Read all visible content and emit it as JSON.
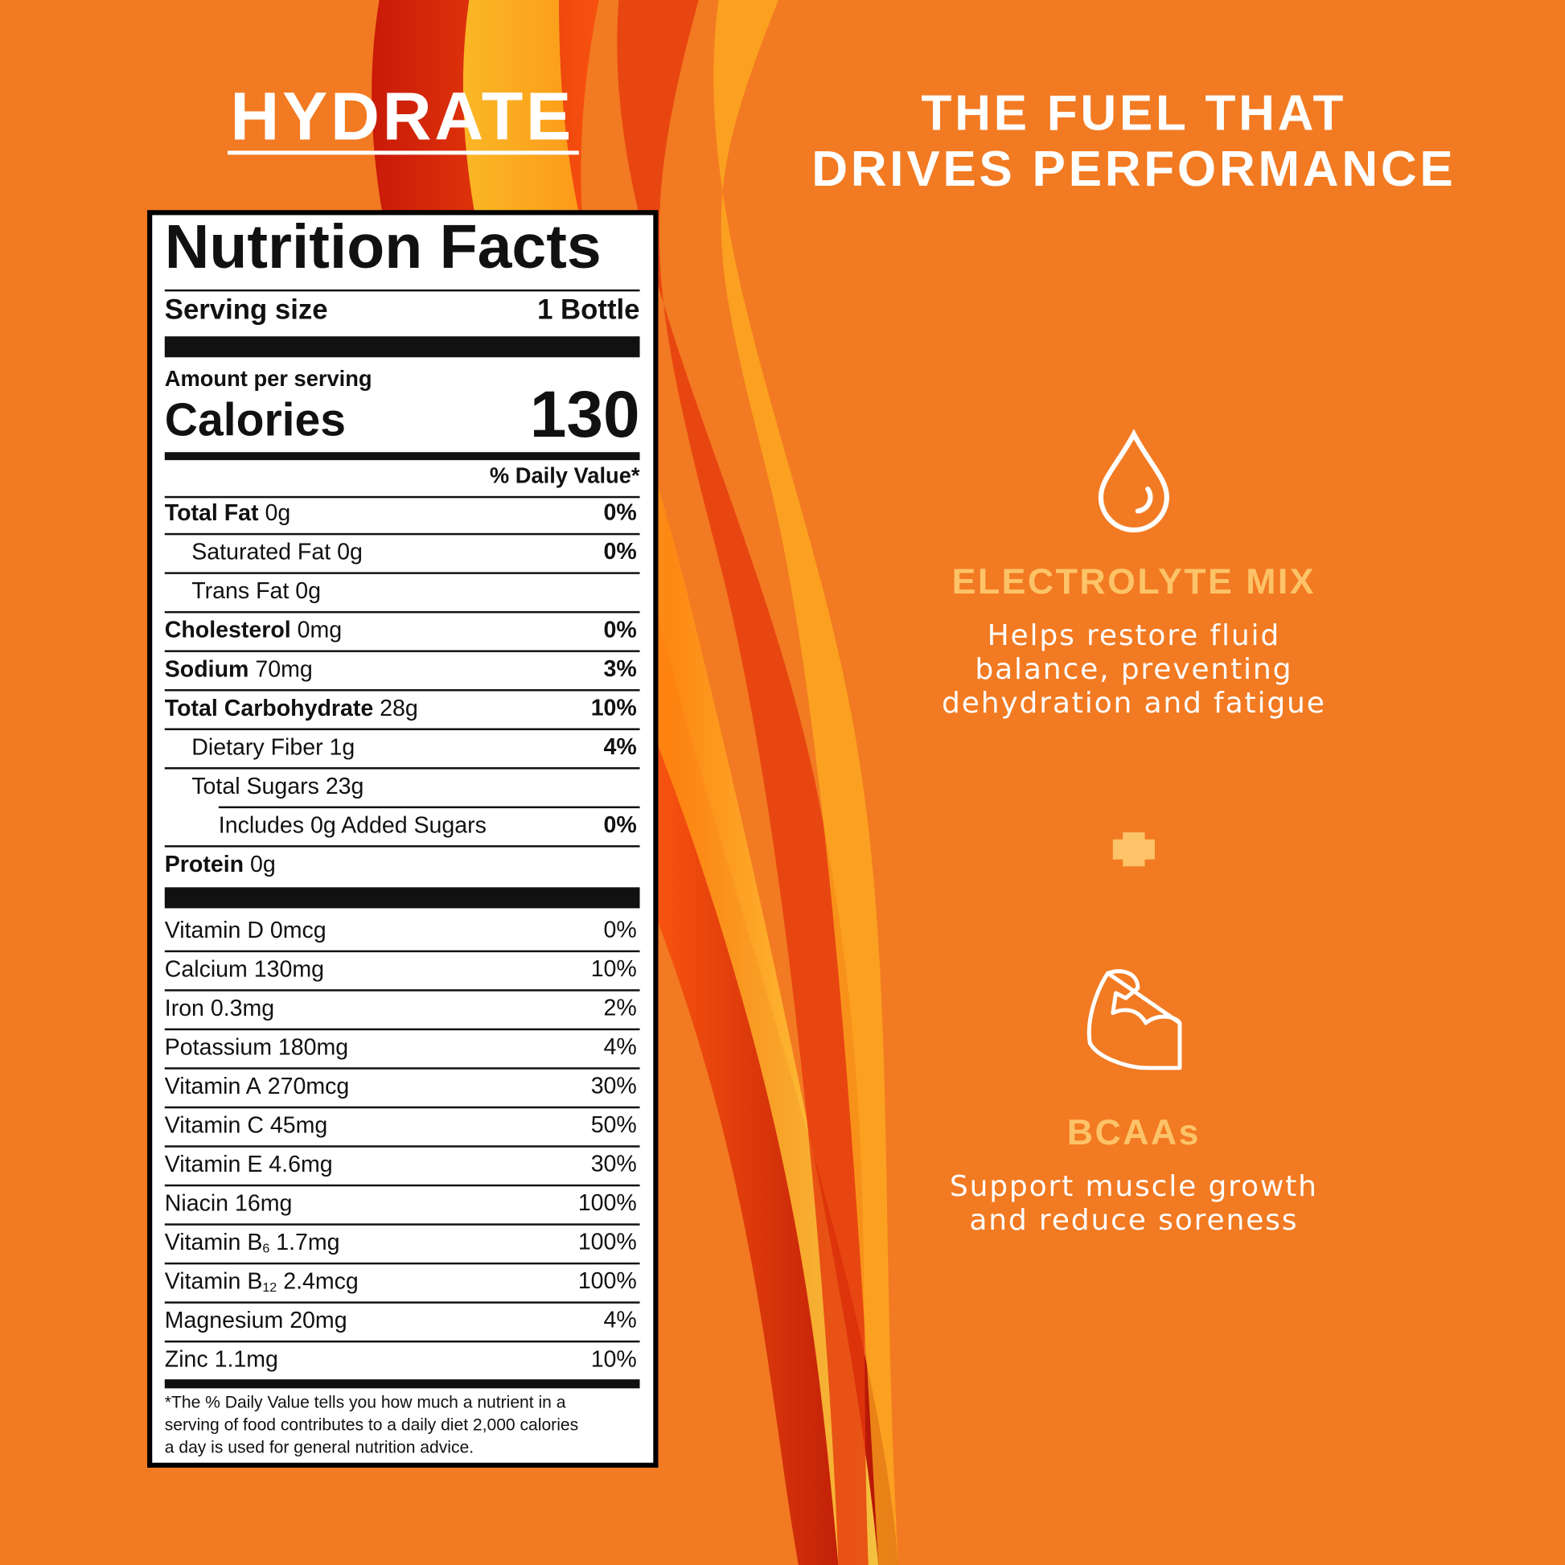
{
  "header": {
    "left_title": "HYDRATE",
    "right_title": [
      "THE FUEL THAT",
      "DRIVES PERFORMANCE"
    ]
  },
  "nutrition_facts": {
    "title": "Nutrition Facts",
    "serving_label": "Serving size",
    "serving_value": "1 Bottle",
    "amount_per_serving": "Amount per serving",
    "calories_label": "Calories",
    "calories": 130,
    "daily_value_header": "% Daily Value*",
    "nutrients": [
      {
        "name": "Total Fat",
        "amount": "0g",
        "dv": "0%"
      },
      {
        "name": "Saturated Fat",
        "amount": "0g",
        "dv": "0%"
      },
      {
        "name": "Trans Fat",
        "amount": "0g"
      },
      {
        "name": "Cholesterol",
        "amount": "0mg",
        "dv": "0%"
      },
      {
        "name": "Sodium",
        "amount": "70mg",
        "dv": "3%"
      },
      {
        "name": "Total Carbohydrate",
        "amount": "28g",
        "dv": "10%"
      },
      {
        "name": "Dietary Fiber",
        "amount": "1g",
        "dv": "4%"
      },
      {
        "name": "Total Sugars",
        "amount": "23g"
      },
      {
        "name": "Includes 0g Added Sugars",
        "dv": "0%"
      },
      {
        "name": "Protein",
        "amount": "0g"
      }
    ],
    "vitamins": [
      {
        "name": "Vitamin D",
        "amount": "0mcg",
        "dv": "0%"
      },
      {
        "name": "Calcium",
        "amount": "130mg",
        "dv": "10%"
      },
      {
        "name": "Iron",
        "amount": "0.3mg",
        "dv": "2%"
      },
      {
        "name": "Potassium",
        "amount": "180mg",
        "dv": "4%"
      },
      {
        "name": "Vitamin A",
        "amount": "270mcg",
        "dv": "30%"
      },
      {
        "name": "Vitamin C",
        "amount": "45mg",
        "dv": "50%"
      },
      {
        "name": "Vitamin E",
        "amount": "4.6mg",
        "dv": "30%"
      },
      {
        "name": "Niacin",
        "amount": "16mg",
        "dv": "100%"
      },
      {
        "name": "Vitamin B",
        "subscript": "6",
        "amount": "1.7mg",
        "dv": "100%"
      },
      {
        "name": "Vitamin B",
        "subscript": "12",
        "amount": "2.4mcg",
        "dv": "100%"
      },
      {
        "name": "Magnesium",
        "amount": "20mg",
        "dv": "4%"
      },
      {
        "name": "Zinc",
        "amount": "1.1mg",
        "dv": "10%"
      }
    ],
    "footnote": [
      "*The % Daily Value tells you how much a nutrient in a",
      "serving of food contributes to a daily diet 2,000 calories",
      "a day is used for general nutrition advice."
    ]
  },
  "features": [
    {
      "title": "ELECTROLYTE MIX",
      "description": [
        "Helps restore fluid",
        "balance, preventing",
        "dehydration and fatigue"
      ]
    },
    {
      "title": "BCAAs",
      "description": [
        "Support muscle growth",
        "and reduce soreness"
      ]
    }
  ]
}
